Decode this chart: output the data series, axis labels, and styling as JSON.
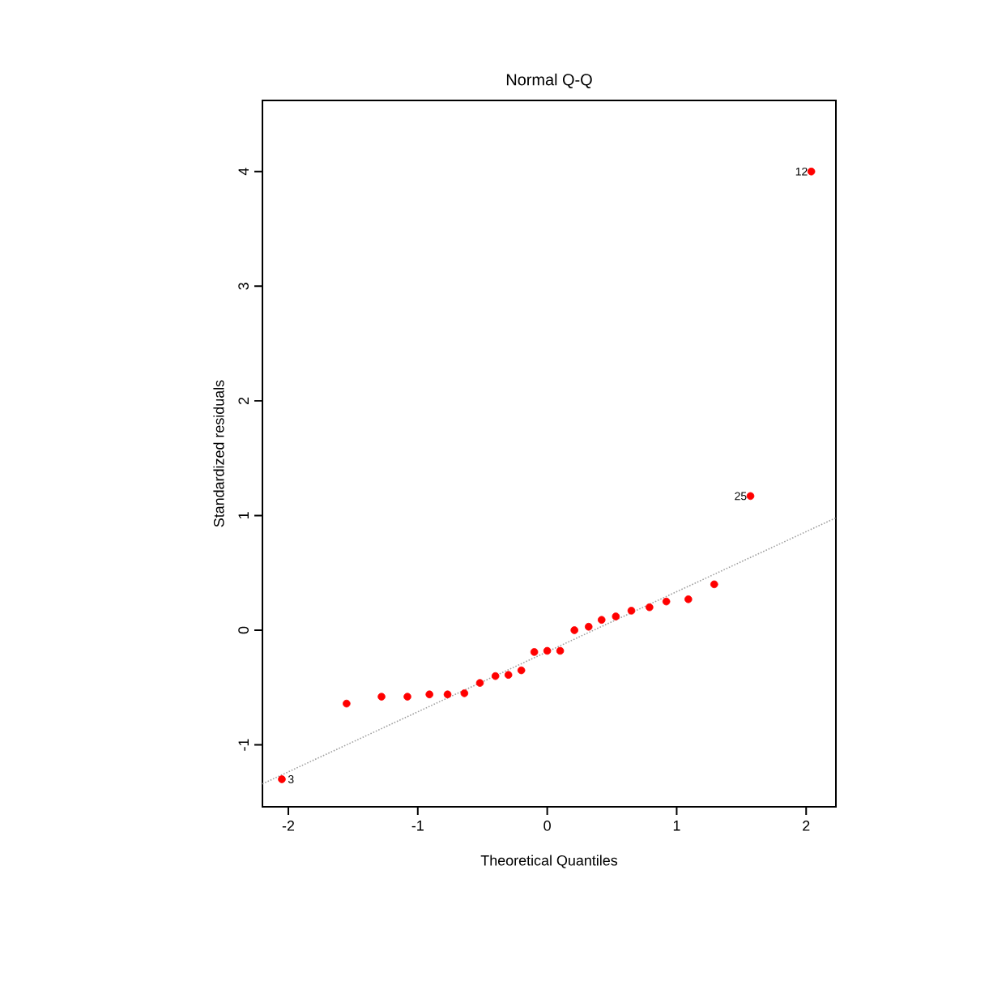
{
  "chart_data": {
    "type": "scatter",
    "title": "Normal Q-Q",
    "xlabel": "Theoretical Quantiles",
    "ylabel": "Standardized residuals",
    "xlim": [
      -2.2,
      2.23
    ],
    "ylim": [
      -1.54,
      4.62
    ],
    "xticks": [
      -2,
      -1,
      0,
      1,
      2
    ],
    "yticks": [
      -1,
      0,
      1,
      2,
      3,
      4
    ],
    "grid": false,
    "marker": "circle",
    "series": [
      {
        "color": "#ff0000",
        "x": [
          -2.05,
          -1.55,
          -1.28,
          -1.08,
          -0.91,
          -0.77,
          -0.64,
          -0.52,
          -0.4,
          -0.3,
          -0.2,
          -0.1,
          0.0,
          0.1,
          0.21,
          0.32,
          0.42,
          0.53,
          0.65,
          0.79,
          0.92,
          1.09,
          1.29,
          1.57,
          2.04
        ],
        "values": [
          -1.3,
          -0.64,
          -0.58,
          -0.58,
          -0.56,
          -0.56,
          -0.55,
          -0.46,
          -0.4,
          -0.39,
          -0.35,
          -0.19,
          -0.18,
          -0.18,
          0.0,
          0.03,
          0.09,
          0.12,
          0.17,
          0.2,
          0.25,
          0.27,
          0.4,
          1.17,
          4.0
        ]
      },
      {
        "type": "line",
        "marker": "none",
        "color": "#a0a0a0",
        "line_style": "dotted",
        "x": [
          -2.2,
          2.23
        ],
        "values": [
          -1.34,
          0.98
        ]
      }
    ],
    "annotations": [
      {
        "text": "12",
        "x": 2.04,
        "y": 4.0
      },
      {
        "text": "25",
        "x": 1.57,
        "y": 1.17
      },
      {
        "text": "3",
        "x": -2.05,
        "y": -1.3
      }
    ]
  }
}
